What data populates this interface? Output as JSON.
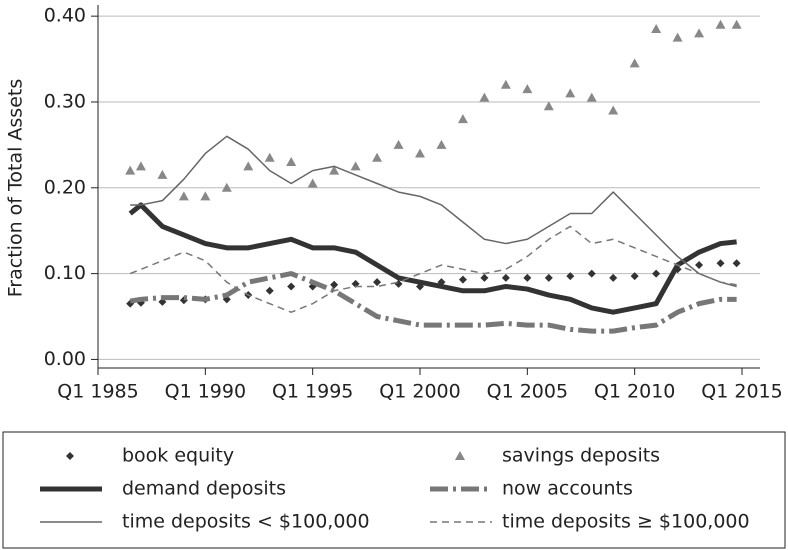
{
  "chart_data": {
    "type": "line",
    "y_label": "Fraction of Total Assets",
    "x": [
      1986.5,
      1987,
      1988,
      1989,
      1990,
      1991,
      1992,
      1993,
      1994,
      1995,
      1996,
      1997,
      1998,
      1999,
      2000,
      2001,
      2002,
      2003,
      2004,
      2005,
      2006,
      2007,
      2008,
      2009,
      2010,
      2011,
      2012,
      2013,
      2014,
      2014.75
    ],
    "xlim": [
      1985,
      2015.8
    ],
    "xticks": [
      {
        "value": 1985,
        "label": "Q1 1985"
      },
      {
        "value": 1990,
        "label": "Q1 1990"
      },
      {
        "value": 1995,
        "label": "Q1 1995"
      },
      {
        "value": 2000,
        "label": "Q1 2000"
      },
      {
        "value": 2005,
        "label": "Q1 2005"
      },
      {
        "value": 2010,
        "label": "Q1 2010"
      },
      {
        "value": 2015,
        "label": "Q1 2015"
      }
    ],
    "ylim": [
      -0.01,
      0.413
    ],
    "yticks": [
      {
        "value": 0,
        "label": "0.00"
      },
      {
        "value": 0.1,
        "label": "0.10"
      },
      {
        "value": 0.2,
        "label": "0.20"
      },
      {
        "value": 0.3,
        "label": "0.30"
      },
      {
        "value": 0.4,
        "label": "0.40"
      }
    ],
    "grid": true,
    "legend": "bottom",
    "series": [
      {
        "name": "book equity",
        "color": "#333333",
        "marker": "diamond",
        "line_width": 0,
        "dash": "none",
        "values": [
          0.065,
          0.066,
          0.067,
          0.069,
          0.07,
          0.07,
          0.075,
          0.08,
          0.085,
          0.085,
          0.087,
          0.088,
          0.09,
          0.088,
          0.085,
          0.09,
          0.093,
          0.095,
          0.095,
          0.095,
          0.095,
          0.097,
          0.1,
          0.095,
          0.097,
          0.1,
          0.105,
          0.11,
          0.112,
          0.112
        ]
      },
      {
        "name": "savings deposits",
        "color": "#888888",
        "marker": "triangle",
        "line_width": 0,
        "dash": "none",
        "values": [
          0.22,
          0.225,
          0.215,
          0.19,
          0.19,
          0.2,
          0.225,
          0.235,
          0.23,
          0.205,
          0.22,
          0.225,
          0.235,
          0.25,
          0.24,
          0.25,
          0.28,
          0.305,
          0.32,
          0.315,
          0.295,
          0.31,
          0.305,
          0.29,
          0.345,
          0.385,
          0.375,
          0.38,
          0.39,
          0.39
        ]
      },
      {
        "name": "demand deposits",
        "color": "#333333",
        "marker": "none",
        "line_width": 5,
        "dash": "none",
        "values": [
          0.17,
          0.18,
          0.155,
          0.145,
          0.135,
          0.13,
          0.13,
          0.135,
          0.14,
          0.13,
          0.13,
          0.125,
          0.11,
          0.095,
          0.09,
          0.085,
          0.08,
          0.08,
          0.085,
          0.082,
          0.075,
          0.07,
          0.06,
          0.055,
          0.06,
          0.065,
          0.11,
          0.125,
          0.135,
          0.137
        ]
      },
      {
        "name": "now accounts",
        "color": "#777777",
        "marker": "none",
        "line_width": 5,
        "dash": "18 5 3 5",
        "values": [
          0.068,
          0.07,
          0.072,
          0.072,
          0.07,
          0.075,
          0.09,
          0.095,
          0.1,
          0.09,
          0.08,
          0.065,
          0.05,
          0.045,
          0.04,
          0.04,
          0.04,
          0.04,
          0.042,
          0.04,
          0.04,
          0.035,
          0.033,
          0.033,
          0.037,
          0.04,
          0.055,
          0.065,
          0.07,
          0.07
        ]
      },
      {
        "name": "time deposits < $100,000",
        "color": "#666666",
        "marker": "none",
        "line_width": 1.5,
        "dash": "none",
        "values": [
          0.18,
          0.18,
          0.185,
          0.21,
          0.24,
          0.26,
          0.245,
          0.22,
          0.205,
          0.22,
          0.225,
          0.215,
          0.205,
          0.195,
          0.19,
          0.18,
          0.16,
          0.14,
          0.135,
          0.14,
          0.155,
          0.17,
          0.17,
          0.195,
          0.17,
          0.145,
          0.12,
          0.1,
          0.09,
          0.085
        ]
      },
      {
        "name": "time deposits ≥ $100,000",
        "color": "#777777",
        "marker": "none",
        "line_width": 1.5,
        "dash": "7 5",
        "values": [
          0.1,
          0.105,
          0.115,
          0.125,
          0.115,
          0.09,
          0.075,
          0.065,
          0.055,
          0.065,
          0.08,
          0.085,
          0.085,
          0.09,
          0.1,
          0.11,
          0.105,
          0.1,
          0.105,
          0.12,
          0.14,
          0.155,
          0.135,
          0.14,
          0.13,
          0.12,
          0.11,
          0.1,
          0.09,
          0.087
        ]
      }
    ]
  }
}
